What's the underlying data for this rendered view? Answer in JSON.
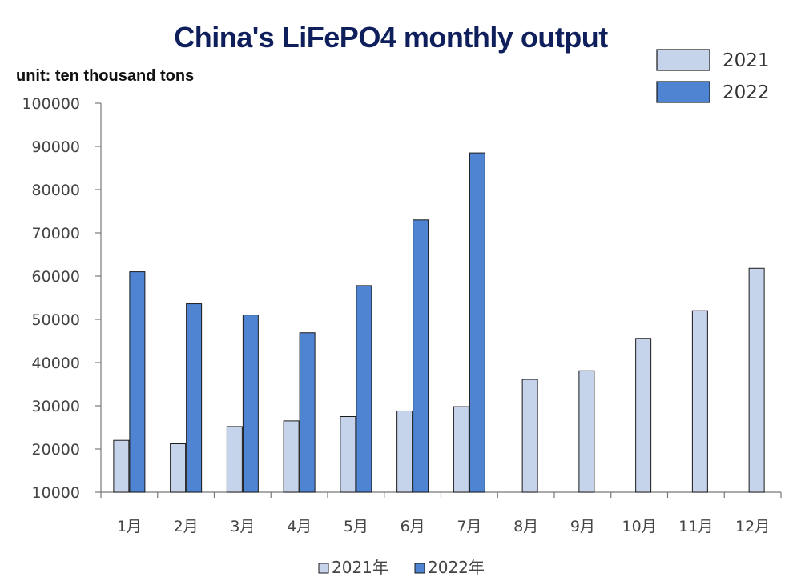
{
  "chart_data": {
    "type": "bar",
    "title": "China's LiFePO4 monthly output",
    "unit_label": "unit: ten thousand tons",
    "categories": [
      "1月",
      "2月",
      "3月",
      "4月",
      "5月",
      "6月",
      "7月",
      "8月",
      "9月",
      "10月",
      "11月",
      "12月"
    ],
    "series": [
      {
        "name": "2021",
        "legend_bottom": "2021年",
        "color": "#c6d4eb",
        "values": [
          22000,
          21200,
          25200,
          26500,
          27500,
          28800,
          29800,
          36100,
          38100,
          45600,
          52000,
          61800
        ]
      },
      {
        "name": "2022",
        "legend_bottom": "2022年",
        "color": "#4f84d2",
        "values": [
          61000,
          53600,
          51000,
          46900,
          57800,
          73000,
          88500,
          null,
          null,
          null,
          null,
          null
        ]
      }
    ],
    "ylim": [
      10000,
      100000
    ],
    "yticks": [
      10000,
      20000,
      30000,
      40000,
      50000,
      60000,
      70000,
      80000,
      90000,
      100000
    ],
    "legend_placement": "top-right",
    "grid": false
  }
}
